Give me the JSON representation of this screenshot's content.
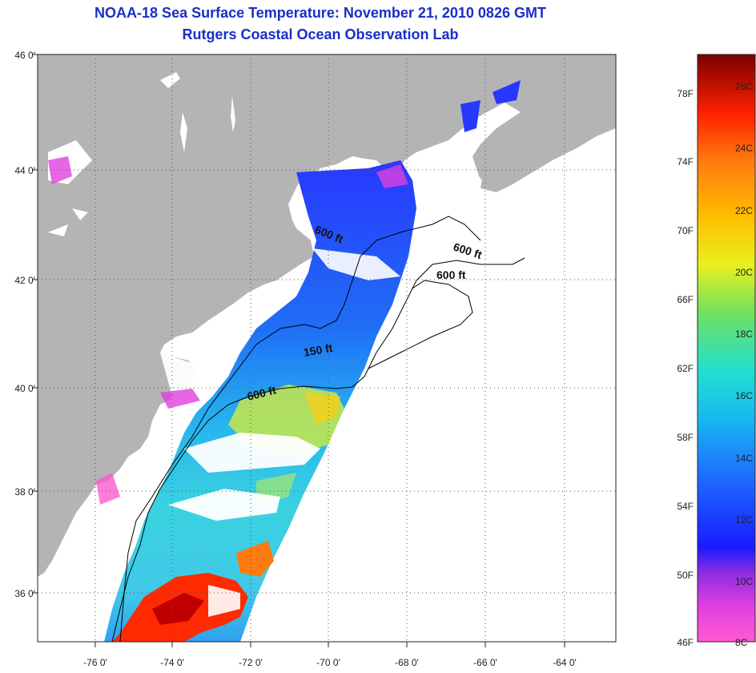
{
  "title_line1": "NOAA-18 Sea Surface Temperature:  November 21, 2010 0826 GMT",
  "title_line2": "Rutgers Coastal Ocean Observation Lab",
  "lat_labels": [
    "46 0'",
    "44 0'",
    "42 0'",
    "40 0'",
    "38 0'",
    "36 0'"
  ],
  "lon_labels": [
    "-76 0'",
    "-74 0'",
    "-72 0'",
    "-70 0'",
    "-68 0'",
    "-66 0'",
    "-64 0'"
  ],
  "depth_labels": [
    "600 ft",
    "600 ft",
    "600 ft",
    "150 ft",
    "600 ft"
  ],
  "colorbar": {
    "fahrenheit": [
      "78F",
      "74F",
      "70F",
      "66F",
      "62F",
      "58F",
      "54F",
      "50F",
      "46F"
    ],
    "celsius": [
      "26C",
      "24C",
      "22C",
      "20C",
      "18C",
      "16C",
      "14C",
      "12C",
      "10C",
      "8C"
    ]
  },
  "colors": {
    "title": "#1a2ec8",
    "land": "#b4b4b4",
    "ocean_no_data": "#ffffff"
  }
}
